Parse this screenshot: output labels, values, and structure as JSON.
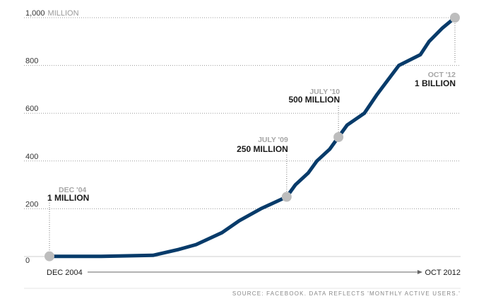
{
  "chart_data": {
    "type": "line",
    "y_ticks": [
      {
        "value": 0,
        "label": "0",
        "unit": ""
      },
      {
        "value": 200,
        "label": "200",
        "unit": ""
      },
      {
        "value": 400,
        "label": "400",
        "unit": ""
      },
      {
        "value": 600,
        "label": "600",
        "unit": ""
      },
      {
        "value": 800,
        "label": "800",
        "unit": ""
      },
      {
        "value": 1000,
        "label": "1,000",
        "unit": "MILLION"
      }
    ],
    "ylim": [
      0,
      1000
    ],
    "xlim": [
      "2004-12",
      "2012-10"
    ],
    "grid": true,
    "series": [
      {
        "color": "#073b6a",
        "points": [
          {
            "x": "2004-12",
            "y": 1
          },
          {
            "x": "2005-12",
            "y": 1
          },
          {
            "x": "2006-12",
            "y": 5
          },
          {
            "x": "2007-06",
            "y": 30
          },
          {
            "x": "2007-10",
            "y": 50
          },
          {
            "x": "2008-04",
            "y": 100
          },
          {
            "x": "2008-08",
            "y": 150
          },
          {
            "x": "2009-01",
            "y": 200
          },
          {
            "x": "2009-07",
            "y": 250
          },
          {
            "x": "2009-09",
            "y": 300
          },
          {
            "x": "2009-12",
            "y": 350
          },
          {
            "x": "2010-02",
            "y": 400
          },
          {
            "x": "2010-05",
            "y": 450
          },
          {
            "x": "2010-07",
            "y": 500
          },
          {
            "x": "2010-09",
            "y": 550
          },
          {
            "x": "2011-01",
            "y": 600
          },
          {
            "x": "2011-04",
            "y": 680
          },
          {
            "x": "2011-09",
            "y": 800
          },
          {
            "x": "2012-02",
            "y": 845
          },
          {
            "x": "2012-04",
            "y": 900
          },
          {
            "x": "2012-07",
            "y": 955
          },
          {
            "x": "2012-10",
            "y": 1000
          }
        ]
      }
    ],
    "annotations": [
      {
        "x": "2004-12",
        "y": 1,
        "date_label": "DEC '04",
        "value_label": "1 MILLION"
      },
      {
        "x": "2009-07",
        "y": 250,
        "date_label": "JULY '09",
        "value_label": "250 MILLION"
      },
      {
        "x": "2010-07",
        "y": 500,
        "date_label": "JULY '10",
        "value_label": "500 MILLION"
      },
      {
        "x": "2012-10",
        "y": 1000,
        "date_label": "OCT '12",
        "value_label": "1 BILLION"
      }
    ],
    "x_start_label": "DEC 2004",
    "x_end_label": "OCT 2012",
    "source": "SOURCE: FACEBOOK. DATA REFLECTS 'MONTHLY ACTIVE USERS.'",
    "colors": {
      "line": "#073b6a",
      "marker": "#bdbdbd",
      "grid": "#9a9a9a",
      "axis_arrow": "#666666"
    }
  }
}
